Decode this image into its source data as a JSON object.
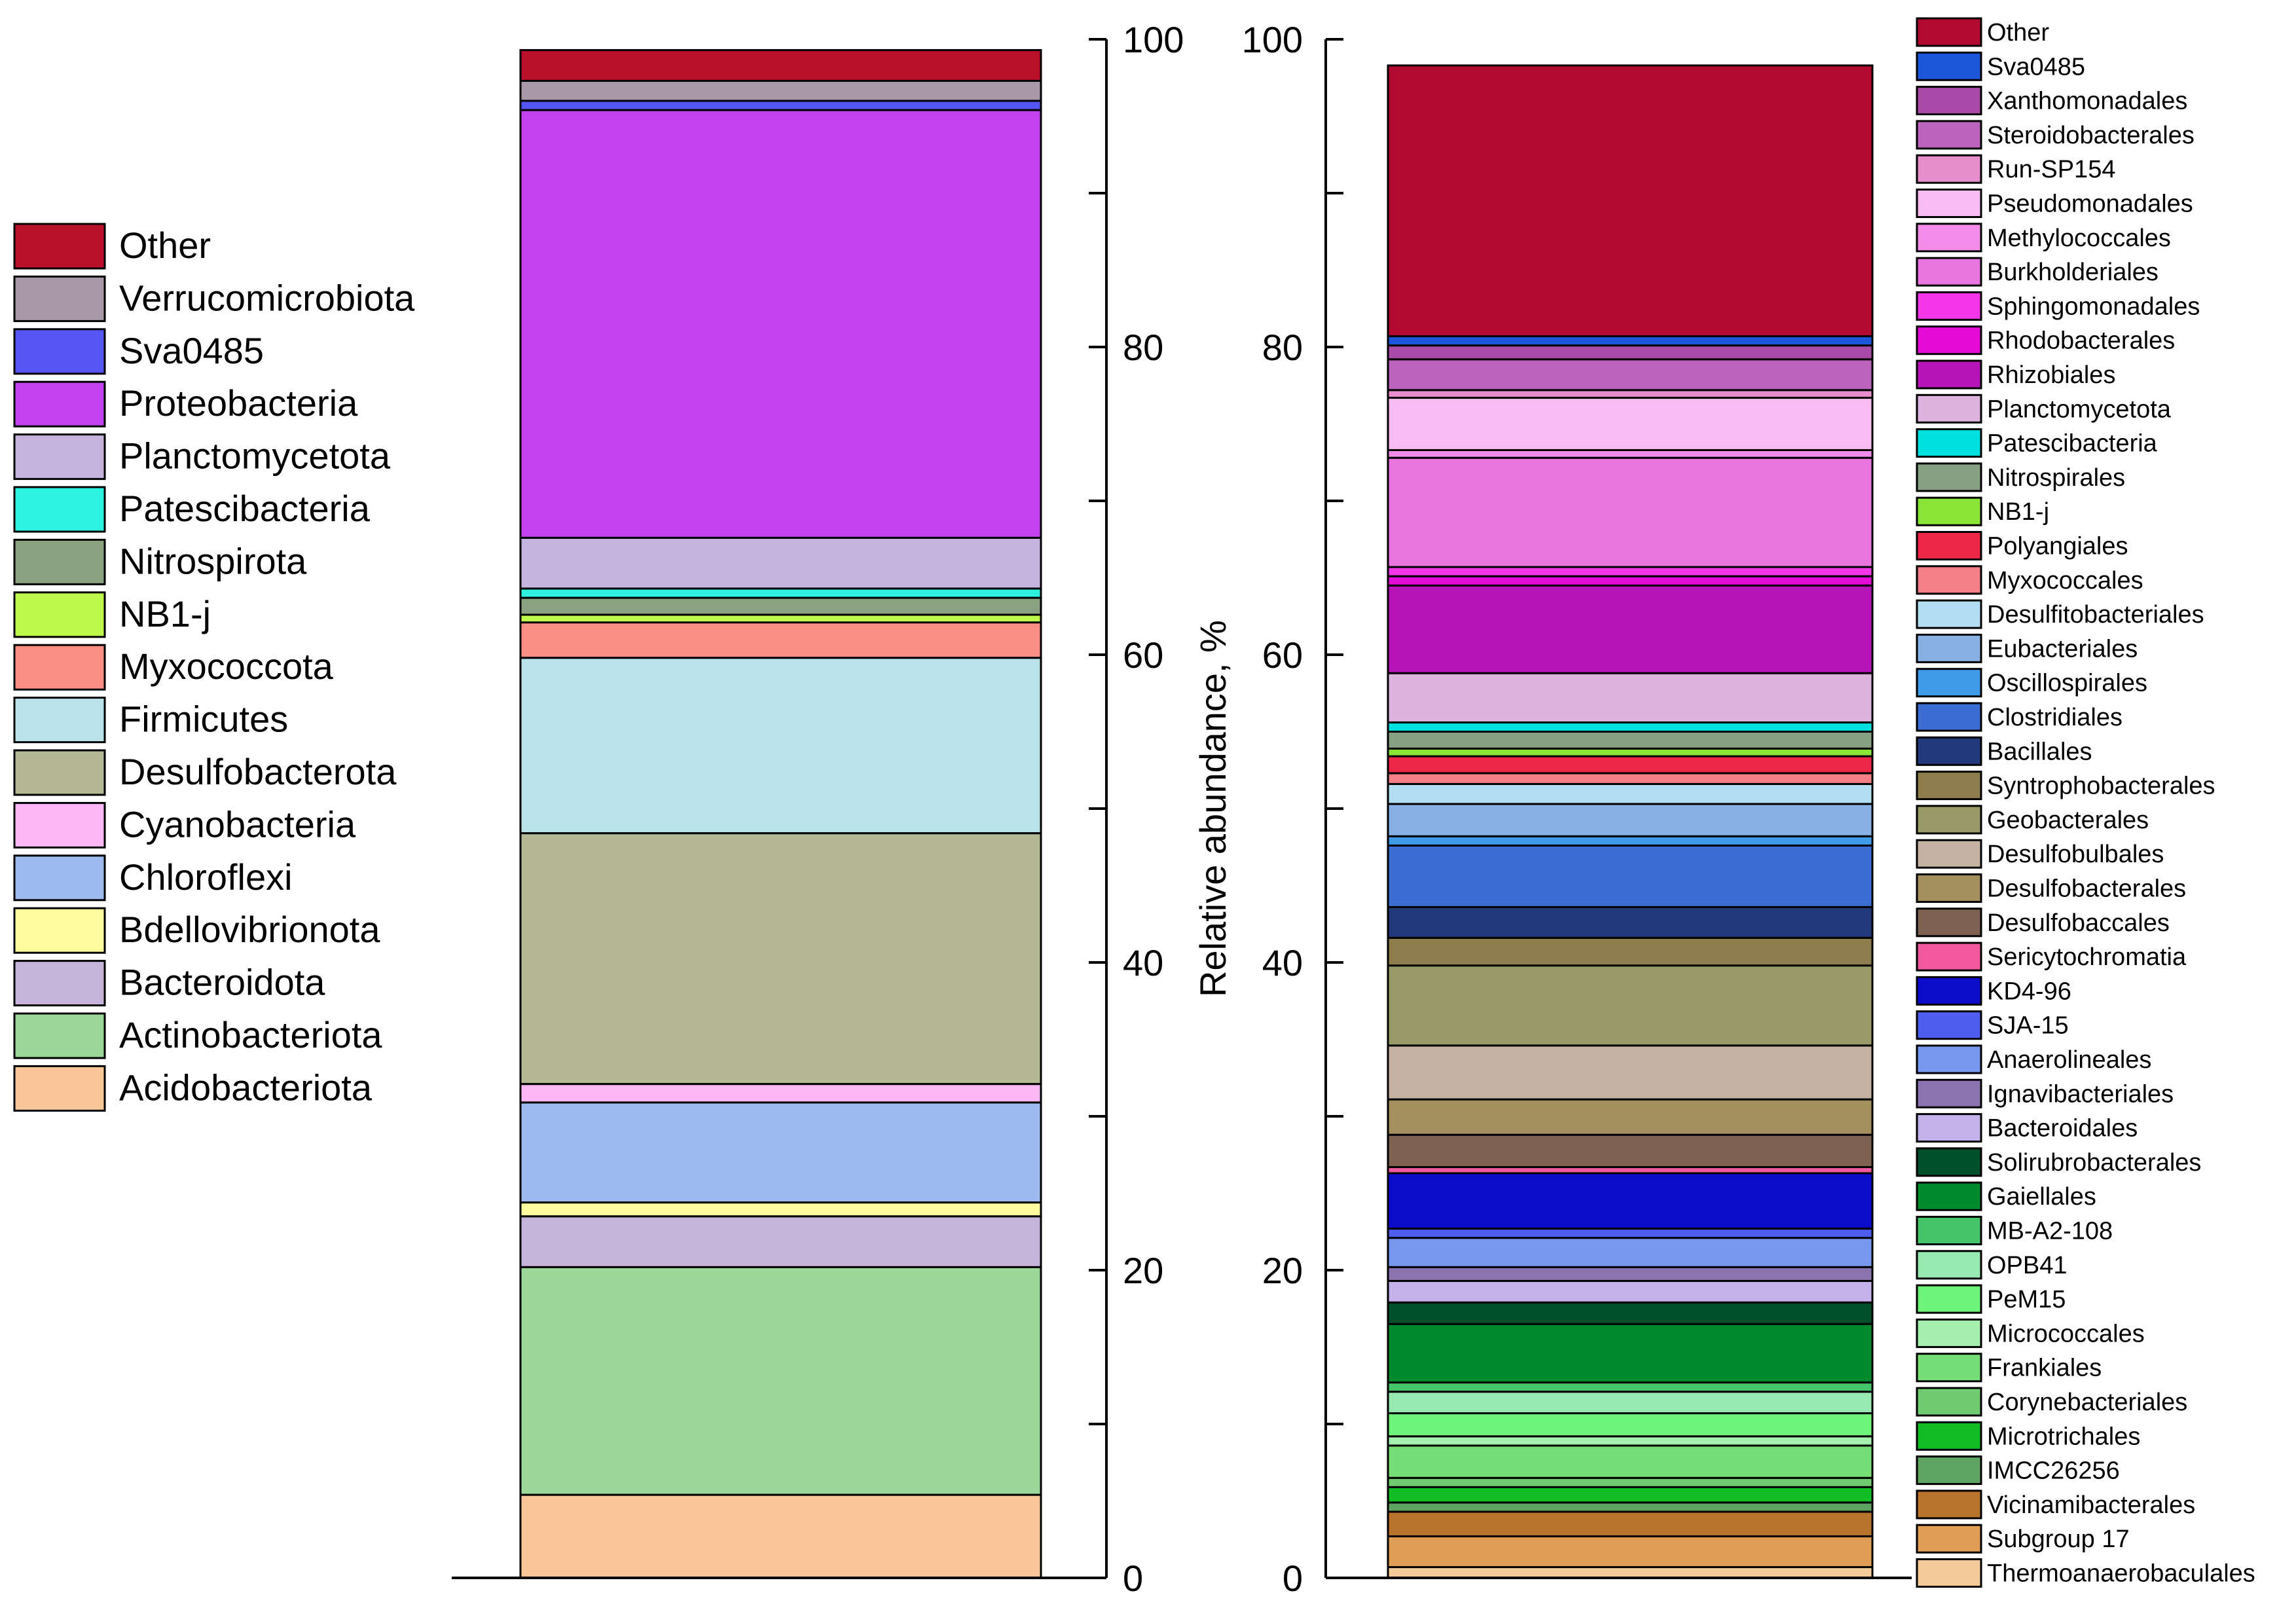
{
  "chart_data": [
    {
      "type": "bar",
      "stacked": true,
      "ylim": [
        0,
        100
      ],
      "yticks": [
        0,
        20,
        40,
        60,
        80,
        100
      ],
      "axis_side": "right",
      "legend_position": "left",
      "series": [
        {
          "name": "Acidobacteriota",
          "value": 5.4,
          "color": "#F9C697"
        },
        {
          "name": "Actinobacteriota",
          "value": 14.8,
          "color": "#9CD79A"
        },
        {
          "name": "Bacteroidota",
          "value": 3.3,
          "color": "#C5B3DA"
        },
        {
          "name": "Bdellovibrionota",
          "value": 0.9,
          "color": "#FDFD9D"
        },
        {
          "name": "Chloroflexi",
          "value": 6.5,
          "color": "#9EBBF0"
        },
        {
          "name": "Cyanobacteria",
          "value": 1.2,
          "color": "#FBB8F5"
        },
        {
          "name": "Desulfobacterota",
          "value": 16.3,
          "color": "#B5B894"
        },
        {
          "name": "Firmicutes",
          "value": 11.4,
          "color": "#B9E2E9"
        },
        {
          "name": "Myxococcota",
          "value": 2.3,
          "color": "#FB8F86"
        },
        {
          "name": "NB1-j",
          "value": 0.5,
          "color": "#BDF84A"
        },
        {
          "name": "Nitrospirota",
          "value": 1.1,
          "color": "#8BA281"
        },
        {
          "name": "Patescibacteria",
          "value": 0.6,
          "color": "#2EF2E0"
        },
        {
          "name": "Planctomycetota",
          "value": 3.3,
          "color": "#C5B3DE"
        },
        {
          "name": "Proteobacteria",
          "value": 27.8,
          "color": "#C242EF"
        },
        {
          "name": "Sva0485",
          "value": 0.6,
          "color": "#5656F2"
        },
        {
          "name": "Verrucomicrobiota",
          "value": 1.3,
          "color": "#A898A8"
        },
        {
          "name": "Other",
          "value": 2.0,
          "color": "#BA0F2B"
        }
      ]
    },
    {
      "type": "bar",
      "stacked": true,
      "ylim": [
        0,
        100
      ],
      "yticks": [
        0,
        20,
        40,
        60,
        80,
        100
      ],
      "ylabel": "Relative abundance, %",
      "axis_side": "left",
      "legend_position": "right",
      "series": [
        {
          "name": "Thermoanaerobaculales",
          "value": 0.7,
          "color": "#F5CB9A"
        },
        {
          "name": "Subgroup 17",
          "value": 2.0,
          "color": "#E09D54"
        },
        {
          "name": "Vicinamibacterales",
          "value": 1.6,
          "color": "#B8742C"
        },
        {
          "name": "IMCC26256",
          "value": 0.6,
          "color": "#5FA463"
        },
        {
          "name": "Microtrichales",
          "value": 1.0,
          "color": "#11BD24"
        },
        {
          "name": "Corynebacteriales",
          "value": 0.6,
          "color": "#70CA70"
        },
        {
          "name": "Frankiales",
          "value": 2.1,
          "color": "#77DD77"
        },
        {
          "name": "Micrococcales",
          "value": 0.6,
          "color": "#A6F0AF"
        },
        {
          "name": "PeM15",
          "value": 1.5,
          "color": "#6EF478"
        },
        {
          "name": "OPB41",
          "value": 1.4,
          "color": "#98E8B1"
        },
        {
          "name": "MB-A2-108",
          "value": 0.6,
          "color": "#45C46A"
        },
        {
          "name": "Gaiellales",
          "value": 3.8,
          "color": "#008A2E"
        },
        {
          "name": "Solirubrobacterales",
          "value": 1.4,
          "color": "#014E2A"
        },
        {
          "name": "Bacteroidales",
          "value": 1.4,
          "color": "#C4B1EA"
        },
        {
          "name": "Ignavibacteriales",
          "value": 0.9,
          "color": "#8A73AF"
        },
        {
          "name": "Anaerolineales",
          "value": 1.9,
          "color": "#7897EE"
        },
        {
          "name": "SJA-15",
          "value": 0.6,
          "color": "#4F5EF0"
        },
        {
          "name": "KD4-96",
          "value": 3.6,
          "color": "#0B0BC9"
        },
        {
          "name": "Sericytochromatia",
          "value": 0.4,
          "color": "#F1589E"
        },
        {
          "name": "Desulfobaccales",
          "value": 2.1,
          "color": "#7E6150"
        },
        {
          "name": "Desulfobacterales",
          "value": 2.3,
          "color": "#A3905E"
        },
        {
          "name": "Desulfobulbales",
          "value": 3.5,
          "color": "#C4B3A3"
        },
        {
          "name": "Geobacterales",
          "value": 5.2,
          "color": "#989A68"
        },
        {
          "name": "Syntrophobacterales",
          "value": 1.8,
          "color": "#8E7D4C"
        },
        {
          "name": "Bacillales",
          "value": 2.0,
          "color": "#223A7C"
        },
        {
          "name": "Clostridiales",
          "value": 4.0,
          "color": "#3C6DD2"
        },
        {
          "name": "Oscillospirales",
          "value": 0.6,
          "color": "#3F9BE8"
        },
        {
          "name": "Eubacteriales",
          "value": 2.1,
          "color": "#87B1E4"
        },
        {
          "name": "Desulfitobacteriales",
          "value": 1.3,
          "color": "#B3DEF2"
        },
        {
          "name": "Myxococcales",
          "value": 0.7,
          "color": "#F47F86"
        },
        {
          "name": "Polyangiales",
          "value": 1.1,
          "color": "#EC2748"
        },
        {
          "name": "NB1-j",
          "value": 0.5,
          "color": "#89E637"
        },
        {
          "name": "Nitrospirales",
          "value": 1.1,
          "color": "#87A083"
        },
        {
          "name": "Patescibacteria",
          "value": 0.6,
          "color": "#00E1DF"
        },
        {
          "name": "Planctomycetota",
          "value": 3.2,
          "color": "#DCB4DE"
        },
        {
          "name": "Rhizobiales",
          "value": 5.7,
          "color": "#B714B9"
        },
        {
          "name": "Rhodobacterales",
          "value": 0.6,
          "color": "#E40BD6"
        },
        {
          "name": "Sphingomonadales",
          "value": 0.6,
          "color": "#F236E8"
        },
        {
          "name": "Burkholderiales",
          "value": 7.1,
          "color": "#E874E0"
        },
        {
          "name": "Methylococcales",
          "value": 0.5,
          "color": "#F38CE9"
        },
        {
          "name": "Pseudomonadales",
          "value": 3.4,
          "color": "#F8BCF2"
        },
        {
          "name": "Run-SP154",
          "value": 0.5,
          "color": "#E68ECB"
        },
        {
          "name": "Steroidobacterales",
          "value": 2.0,
          "color": "#BA64BB"
        },
        {
          "name": "Xanthomonadales",
          "value": 0.9,
          "color": "#A94AA8"
        },
        {
          "name": "Sva0485",
          "value": 0.6,
          "color": "#1C56DA"
        },
        {
          "name": "Other",
          "value": 17.6,
          "color": "#B00A30"
        }
      ]
    }
  ]
}
